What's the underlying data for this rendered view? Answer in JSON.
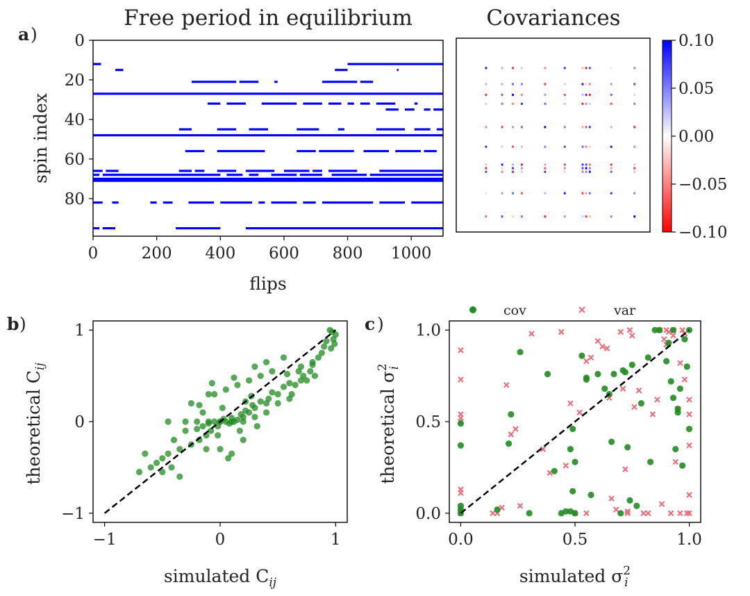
{
  "chart_data": [
    {
      "panel_label": "a",
      "panel_label_suffix": ")",
      "type": "heatmap",
      "title": "Free period in equilibrium",
      "xlabel": "flips",
      "ylabel": "spin index",
      "xlim": [
        0,
        1100
      ],
      "ylim": [
        0,
        99
      ],
      "xticks": [
        "0",
        "200",
        "400",
        "600",
        "800",
        "1000"
      ],
      "xtick_values": [
        0,
        200,
        400,
        600,
        800,
        1000
      ],
      "yticks": [
        "0",
        "20",
        "40",
        "60",
        "80"
      ],
      "ytick_values": [
        0,
        20,
        40,
        60,
        80
      ],
      "color": "#0000ff",
      "active_segments": [
        {
          "spin": 12,
          "ranges": [
            [
              0,
              25
            ],
            [
              800,
              1100
            ]
          ]
        },
        {
          "spin": 15,
          "ranges": [
            [
              70,
              95
            ],
            [
              760,
              800
            ],
            [
              955,
              960
            ]
          ]
        },
        {
          "spin": 21,
          "ranges": [
            [
              310,
              450
            ],
            [
              460,
              520
            ],
            [
              570,
              580
            ],
            [
              720,
              830
            ],
            [
              840,
              880
            ]
          ]
        },
        {
          "spin": 27,
          "ranges": [
            [
              0,
              1100
            ]
          ]
        },
        {
          "spin": 32,
          "ranges": [
            [
              360,
              400
            ],
            [
              420,
              480
            ],
            [
              530,
              640
            ],
            [
              660,
              720
            ],
            [
              740,
              780
            ],
            [
              800,
              820
            ],
            [
              840,
              870
            ],
            [
              890,
              950
            ],
            [
              1010,
              1020
            ]
          ]
        },
        {
          "spin": 35,
          "ranges": [
            [
              920,
              960
            ],
            [
              980,
              1010
            ],
            [
              1040,
              1060
            ],
            [
              1070,
              1100
            ]
          ]
        },
        {
          "spin": 45,
          "ranges": [
            [
              270,
              310
            ],
            [
              390,
              450
            ],
            [
              490,
              550
            ],
            [
              640,
              710
            ],
            [
              770,
              790
            ],
            [
              890,
              980
            ],
            [
              1010,
              1060
            ],
            [
              1080,
              1100
            ]
          ]
        },
        {
          "spin": 48,
          "ranges": [
            [
              0,
              1100
            ]
          ]
        },
        {
          "spin": 56,
          "ranges": [
            [
              290,
              350
            ],
            [
              390,
              540
            ],
            [
              640,
              700
            ],
            [
              710,
              820
            ],
            [
              850,
              930
            ],
            [
              950,
              1030
            ],
            [
              1040,
              1080
            ]
          ]
        },
        {
          "spin": 66,
          "ranges": [
            [
              0,
              30
            ],
            [
              40,
              80
            ],
            [
              270,
              310
            ],
            [
              320,
              350
            ],
            [
              390,
              450
            ],
            [
              480,
              570
            ],
            [
              600,
              680
            ],
            [
              690,
              720
            ],
            [
              740,
              830
            ],
            [
              900,
              1100
            ]
          ]
        },
        {
          "spin": 68,
          "ranges": [
            [
              0,
              20
            ],
            [
              30,
              400
            ],
            [
              420,
              470
            ],
            [
              490,
              520
            ],
            [
              560,
              640
            ],
            [
              650,
              720
            ],
            [
              750,
              860
            ],
            [
              870,
              1100
            ]
          ]
        },
        {
          "spin": 70,
          "ranges": [
            [
              0,
              1100
            ]
          ]
        },
        {
          "spin": 71,
          "ranges": [
            [
              0,
              1100
            ]
          ]
        },
        {
          "spin": 82,
          "ranges": [
            [
              0,
              30
            ],
            [
              60,
              80
            ],
            [
              180,
              200
            ],
            [
              220,
              250
            ],
            [
              300,
              380
            ],
            [
              400,
              500
            ],
            [
              520,
              540
            ],
            [
              560,
              640
            ],
            [
              660,
              700
            ],
            [
              720,
              880
            ],
            [
              900,
              980
            ],
            [
              1000,
              1100
            ]
          ]
        },
        {
          "spin": 95,
          "ranges": [
            [
              0,
              20
            ],
            [
              30,
              70
            ],
            [
              260,
              400
            ],
            [
              480,
              1100
            ]
          ]
        }
      ]
    },
    {
      "type": "heatmap",
      "title": "Covariances",
      "colorbar": {
        "min": -0.1,
        "max": 0.1,
        "ticks": [
          "0.10",
          "0.05",
          "0.00",
          "−0.05",
          "−0.10"
        ],
        "tick_values": [
          0.1,
          0.05,
          0.0,
          -0.05,
          -0.1
        ],
        "colormap": "bwr_r"
      },
      "active_spins": [
        12,
        21,
        27,
        32,
        45,
        56,
        66,
        68,
        70,
        82,
        95
      ],
      "cell_values": [
        [
          0.09,
          0.03,
          -0.08,
          0.02,
          -0.05,
          0.08,
          -0.03,
          -0.09,
          0.07,
          0.01,
          -0.06
        ],
        [
          0.03,
          -0.04,
          0.06,
          0.05,
          -0.08,
          0.02,
          0.09,
          -0.02,
          -0.05,
          0.04,
          0.07
        ],
        [
          -0.08,
          0.06,
          0.1,
          -0.05,
          0.04,
          -0.07,
          0.03,
          0.08,
          -0.09,
          0.06,
          -0.02
        ],
        [
          0.02,
          0.05,
          -0.05,
          0.08,
          0.06,
          -0.03,
          -0.09,
          0.04,
          0.02,
          -0.07,
          0.05
        ],
        [
          -0.05,
          -0.08,
          0.04,
          0.06,
          0.1,
          0.05,
          -0.04,
          -0.07,
          0.08,
          0.03,
          -0.09
        ],
        [
          0.08,
          0.02,
          -0.07,
          -0.03,
          0.05,
          0.07,
          0.06,
          -0.05,
          -0.02,
          0.09,
          0.04
        ],
        [
          -0.03,
          0.09,
          0.03,
          -0.09,
          -0.04,
          0.06,
          0.08,
          0.07,
          -0.06,
          -0.08,
          0.02
        ],
        [
          -0.09,
          -0.02,
          0.08,
          0.04,
          -0.07,
          -0.05,
          0.07,
          0.1,
          0.05,
          -0.04,
          -0.08
        ],
        [
          0.07,
          -0.05,
          -0.09,
          0.02,
          0.08,
          -0.02,
          -0.06,
          0.05,
          0.09,
          0.06,
          -0.03
        ],
        [
          0.01,
          0.04,
          0.06,
          -0.07,
          0.03,
          0.09,
          -0.08,
          -0.04,
          0.06,
          0.08,
          0.05
        ],
        [
          -0.06,
          0.07,
          -0.02,
          0.05,
          -0.09,
          0.04,
          0.02,
          -0.08,
          -0.03,
          0.05,
          0.1
        ]
      ]
    },
    {
      "panel_label": "b",
      "panel_label_suffix": ")",
      "type": "scatter",
      "xlabel": "simulated C",
      "xlabel_sub": "ij",
      "ylabel": "theoretical C",
      "ylabel_sub": "ij",
      "xlim": [
        -1.1,
        1.1
      ],
      "ylim": [
        -1.1,
        1.1
      ],
      "xticks": [
        "−1",
        "0",
        "1"
      ],
      "xtick_values": [
        -1,
        0,
        1
      ],
      "yticks": [
        "−1",
        "0",
        "1"
      ],
      "ytick_values": [
        -1,
        0,
        1
      ],
      "diagonal": {
        "x": [
          -1,
          1
        ],
        "y": [
          -1,
          1
        ],
        "style": "dashed",
        "color": "#000000"
      },
      "series": [
        {
          "name": "C_ij",
          "color": "#228b22",
          "x": [
            0.95,
            0.97,
            0.98,
            1.0,
            0.99,
            0.96,
            0.92,
            0.9,
            0.88,
            0.85,
            0.8,
            0.78,
            0.72,
            0.7,
            0.65,
            0.6,
            0.55,
            0.5,
            0.45,
            0.42,
            0.4,
            0.35,
            0.3,
            0.28,
            0.25,
            0.22,
            0.2,
            0.18,
            0.15,
            0.12,
            0.1,
            0.08,
            0.05,
            0.03,
            0.0,
            -0.02,
            -0.05,
            -0.08,
            -0.1,
            -0.12,
            -0.15,
            -0.18,
            -0.2,
            -0.25,
            -0.3,
            -0.35,
            -0.4,
            -0.45,
            -0.5,
            -0.55,
            -0.6,
            -0.7,
            -0.65,
            -0.45,
            -0.3,
            -0.2,
            -0.1,
            0.0,
            0.1,
            0.2,
            0.3,
            0.4,
            0.5,
            0.6,
            0.7,
            0.8,
            -0.05,
            0.05,
            0.15,
            0.25,
            0.35,
            0.45,
            -0.15,
            -0.25,
            0.0,
            0.1,
            0.2,
            -0.1,
            0.3,
            0.4,
            0.55,
            0.62,
            0.75,
            0.82,
            0.68,
            0.58,
            -0.35,
            -0.42,
            -0.5,
            0.02,
            -0.02,
            0.07,
            -0.07,
            0.12,
            0.17,
            0.22,
            -0.12,
            -0.18,
            0.27,
            0.32
          ],
          "y": [
            1.0,
            0.98,
            0.9,
            0.95,
            0.85,
            0.8,
            0.88,
            0.82,
            0.75,
            0.7,
            0.65,
            0.55,
            0.5,
            0.45,
            0.4,
            0.42,
            0.38,
            0.3,
            0.32,
            0.25,
            0.2,
            0.22,
            0.15,
            0.18,
            0.1,
            0.12,
            0.05,
            0.08,
            0.02,
            0.0,
            0.04,
            -0.02,
            0.0,
            0.03,
            0.0,
            -0.05,
            0.0,
            -0.1,
            -0.02,
            -0.15,
            -0.05,
            -0.2,
            -0.08,
            -0.25,
            -0.1,
            -0.3,
            -0.2,
            -0.35,
            -0.4,
            -0.45,
            -0.5,
            -0.55,
            -0.35,
            0.0,
            0.0,
            0.0,
            0.0,
            0.0,
            0.0,
            0.0,
            0.05,
            0.1,
            0.2,
            0.25,
            0.6,
            0.62,
            0.3,
            0.35,
            0.4,
            0.45,
            0.5,
            0.55,
            0.1,
            0.2,
            -0.3,
            -0.35,
            -0.2,
            0.3,
            0.6,
            0.65,
            0.7,
            0.3,
            0.45,
            0.5,
            0.55,
            0.52,
            -0.6,
            -0.5,
            -0.55,
            0.15,
            -0.15,
            -0.4,
            0.42,
            0.48,
            -0.1,
            0.22,
            -0.3,
            0.18,
            0.28,
            -0.05
          ]
        }
      ]
    },
    {
      "panel_label": "c",
      "panel_label_suffix": ")",
      "type": "scatter",
      "xlabel": "simulated σ",
      "xlabel_sub": "i",
      "xlabel_sup": "2",
      "ylabel": "theoretical σ",
      "ylabel_sub": "i",
      "ylabel_sup": "2",
      "xlim": [
        -0.05,
        1.05
      ],
      "ylim": [
        -0.05,
        1.05
      ],
      "xticks": [
        "0.0",
        "0.5",
        "1.0"
      ],
      "xtick_values": [
        0.0,
        0.5,
        1.0
      ],
      "yticks": [
        "0.0",
        "0.5",
        "1.0"
      ],
      "ytick_values": [
        0.0,
        0.5,
        1.0
      ],
      "legend": {
        "position": "top",
        "entries": [
          "cov",
          "var"
        ]
      },
      "diagonal": {
        "x": [
          0,
          1
        ],
        "y": [
          0,
          1
        ],
        "style": "dashed",
        "color": "#000000"
      },
      "series": [
        {
          "name": "cov",
          "marker": "circle",
          "color": "#228b22",
          "x": [
            0.0,
            0.0,
            0.0,
            0.0,
            0.0,
            0.16,
            0.21,
            0.22,
            0.26,
            0.3,
            0.38,
            0.41,
            0.44,
            0.46,
            0.48,
            0.48,
            0.49,
            0.5,
            0.49,
            0.5,
            0.53,
            0.55,
            0.55,
            0.57,
            0.6,
            0.63,
            0.65,
            0.66,
            0.67,
            0.7,
            0.71,
            0.72,
            0.73,
            0.74,
            0.75,
            0.77,
            0.79,
            0.82,
            0.83,
            0.85,
            0.87,
            0.9,
            0.91,
            0.92,
            0.93,
            0.94,
            0.95,
            0.96,
            0.97,
            0.98,
            0.99,
            1.0,
            1.0,
            0.95,
            0.93
          ],
          "y": [
            0.02,
            0.04,
            0.37,
            0.49,
            0.0,
            0.02,
            0.38,
            0.54,
            0.88,
            0.0,
            0.76,
            0.23,
            0.0,
            0.01,
            0.35,
            0.01,
            0.46,
            0.28,
            0.12,
            0.0,
            0.86,
            0.74,
            0.73,
            0.1,
            0.76,
            0.68,
            0.65,
            0.39,
            0.76,
            0.0,
            0.78,
            0.77,
            0.36,
            0.07,
            0.81,
            0.04,
            0.6,
            0.85,
            0.28,
            1.0,
            1.0,
            0.83,
            0.93,
            0.72,
            1.0,
            0.35,
            0.57,
            0.68,
            0.26,
            0.95,
            0.8,
            0.46,
            1.0,
            0.55,
            0.63
          ]
        },
        {
          "name": "var",
          "marker": "x",
          "color": "#e8707f",
          "x": [
            0.0,
            0.0,
            0.0,
            0.0,
            0.0,
            0.0,
            0.0,
            0.0,
            0.0,
            0.14,
            0.16,
            0.18,
            0.2,
            0.22,
            0.24,
            0.26,
            0.31,
            0.36,
            0.39,
            0.44,
            0.46,
            0.48,
            0.5,
            0.52,
            0.55,
            0.57,
            0.6,
            0.62,
            0.64,
            0.66,
            0.68,
            0.7,
            0.71,
            0.72,
            0.73,
            0.74,
            0.75,
            0.76,
            0.78,
            0.8,
            0.82,
            0.84,
            0.86,
            0.88,
            0.9,
            0.91,
            0.92,
            0.93,
            0.94,
            0.95,
            0.96,
            0.97,
            0.98,
            0.99,
            1.0,
            1.0,
            1.0,
            1.0,
            1.0,
            0.87,
            0.89,
            0.9,
            0.93,
            0.96,
            0.98,
            0.73,
            0.65,
            0.55
          ],
          "y": [
            0.89,
            0.73,
            0.54,
            0.52,
            0.5,
            0.13,
            0.11,
            0.02,
            0.0,
            0.0,
            0.0,
            0.03,
            0.7,
            0.43,
            0.46,
            0.04,
            0.98,
            0.35,
            0.22,
            0.99,
            0.26,
            0.6,
            0.0,
            0.55,
            0.83,
            0.85,
            0.94,
            0.91,
            0.9,
            0.08,
            0.02,
            0.99,
            0.68,
            0.24,
            0.01,
            1.0,
            0.97,
            0.58,
            0.67,
            0.0,
            0.0,
            0.54,
            0.62,
            0.05,
            1.0,
            0.99,
            0.0,
            1.0,
            0.28,
            0.57,
            0.0,
            1.0,
            0.98,
            0.0,
            0.37,
            0.54,
            0.62,
            0.1,
            0.0,
            1.0,
            0.95,
            0.92,
            0.97,
            0.82,
            0.73,
            0.0,
            0.63,
            0.0
          ]
        }
      ]
    }
  ]
}
